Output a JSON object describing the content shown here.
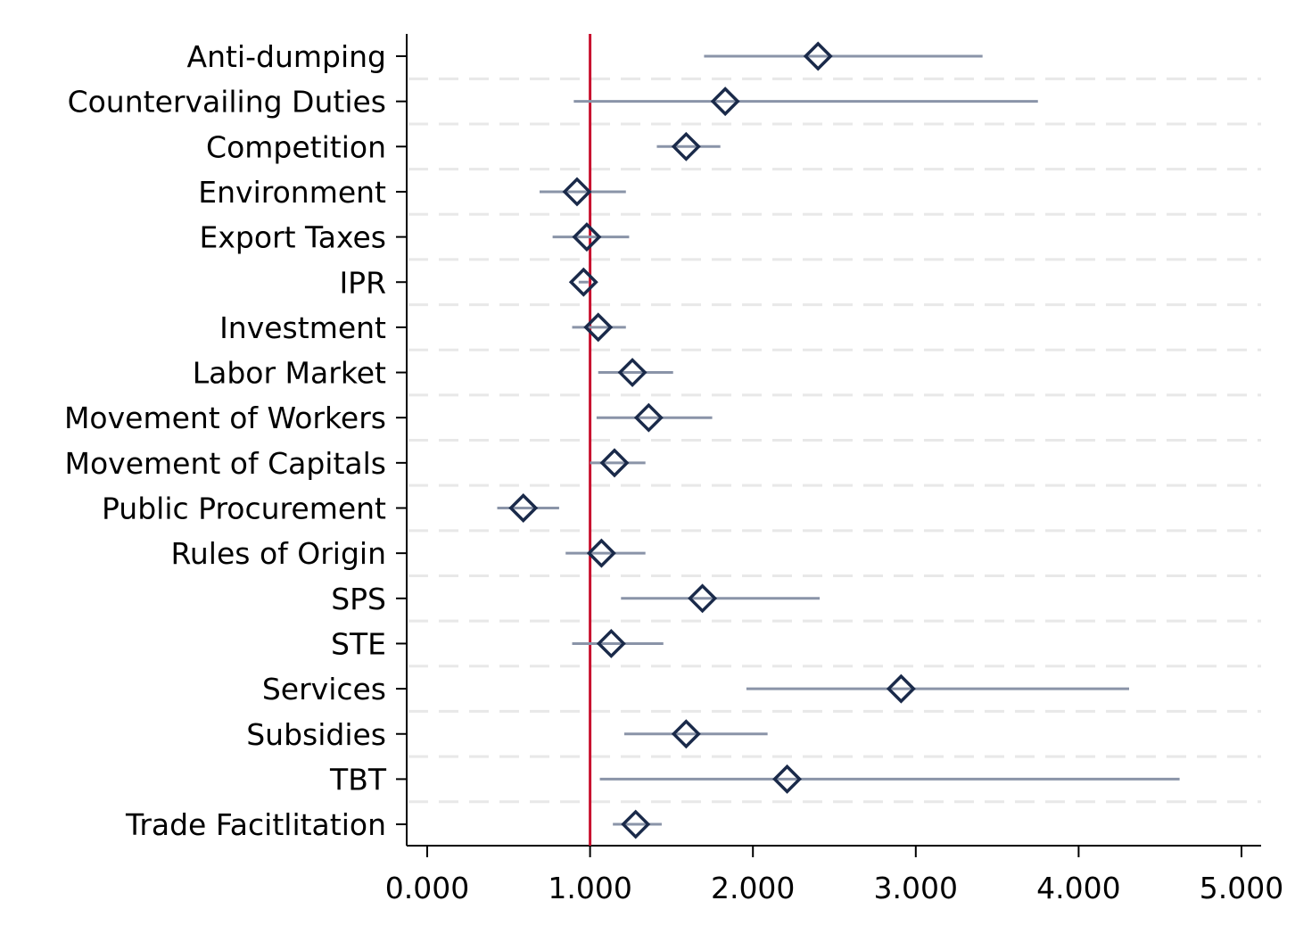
{
  "chart_data": {
    "type": "scatter",
    "subtype": "coefficient-plot-horizontal-with-ci",
    "title": "",
    "xlabel": "",
    "ylabel": "",
    "xlim": [
      -0.05,
      5.05
    ],
    "x_ticks": [
      0,
      1,
      2,
      3,
      4,
      5
    ],
    "x_tick_labels": [
      "0.000",
      "1.000",
      "2.000",
      "3.000",
      "4.000",
      "5.000"
    ],
    "reference_line": {
      "x": 1.0,
      "color": "#c8102e"
    },
    "grid": "horizontal dashed",
    "legend": "none",
    "marker": "hollow diamond",
    "colors": {
      "marker": "#1a2a4a",
      "ci": "#8a94a8",
      "reference": "#c8102e",
      "grid": "#e8e8e8",
      "axis": "#000000"
    },
    "categories": [
      "Anti-dumping",
      "Countervailing Duties",
      "Competition",
      "Environment",
      "Export Taxes",
      "IPR",
      "Investment",
      "Labor Market",
      "Movement of Workers",
      "Movement of Capitals",
      "Public Procurement",
      "Rules of Origin",
      "SPS",
      "STE",
      "Services",
      "Subsidies",
      "TBT",
      "Trade Facitlitation"
    ],
    "estimates": [
      2.4,
      1.83,
      1.59,
      0.92,
      0.98,
      0.96,
      1.05,
      1.26,
      1.36,
      1.15,
      0.59,
      1.07,
      1.69,
      1.13,
      2.91,
      1.59,
      2.21,
      1.28
    ],
    "ci_low": [
      1.7,
      0.9,
      1.41,
      0.69,
      0.77,
      0.93,
      0.89,
      1.05,
      1.04,
      1.0,
      0.43,
      0.85,
      1.19,
      0.89,
      1.96,
      1.21,
      1.06,
      1.14
    ],
    "ci_high": [
      3.41,
      3.75,
      1.8,
      1.22,
      1.24,
      0.99,
      1.22,
      1.51,
      1.75,
      1.34,
      0.81,
      1.34,
      2.41,
      1.45,
      4.31,
      2.09,
      4.62,
      1.44
    ]
  }
}
